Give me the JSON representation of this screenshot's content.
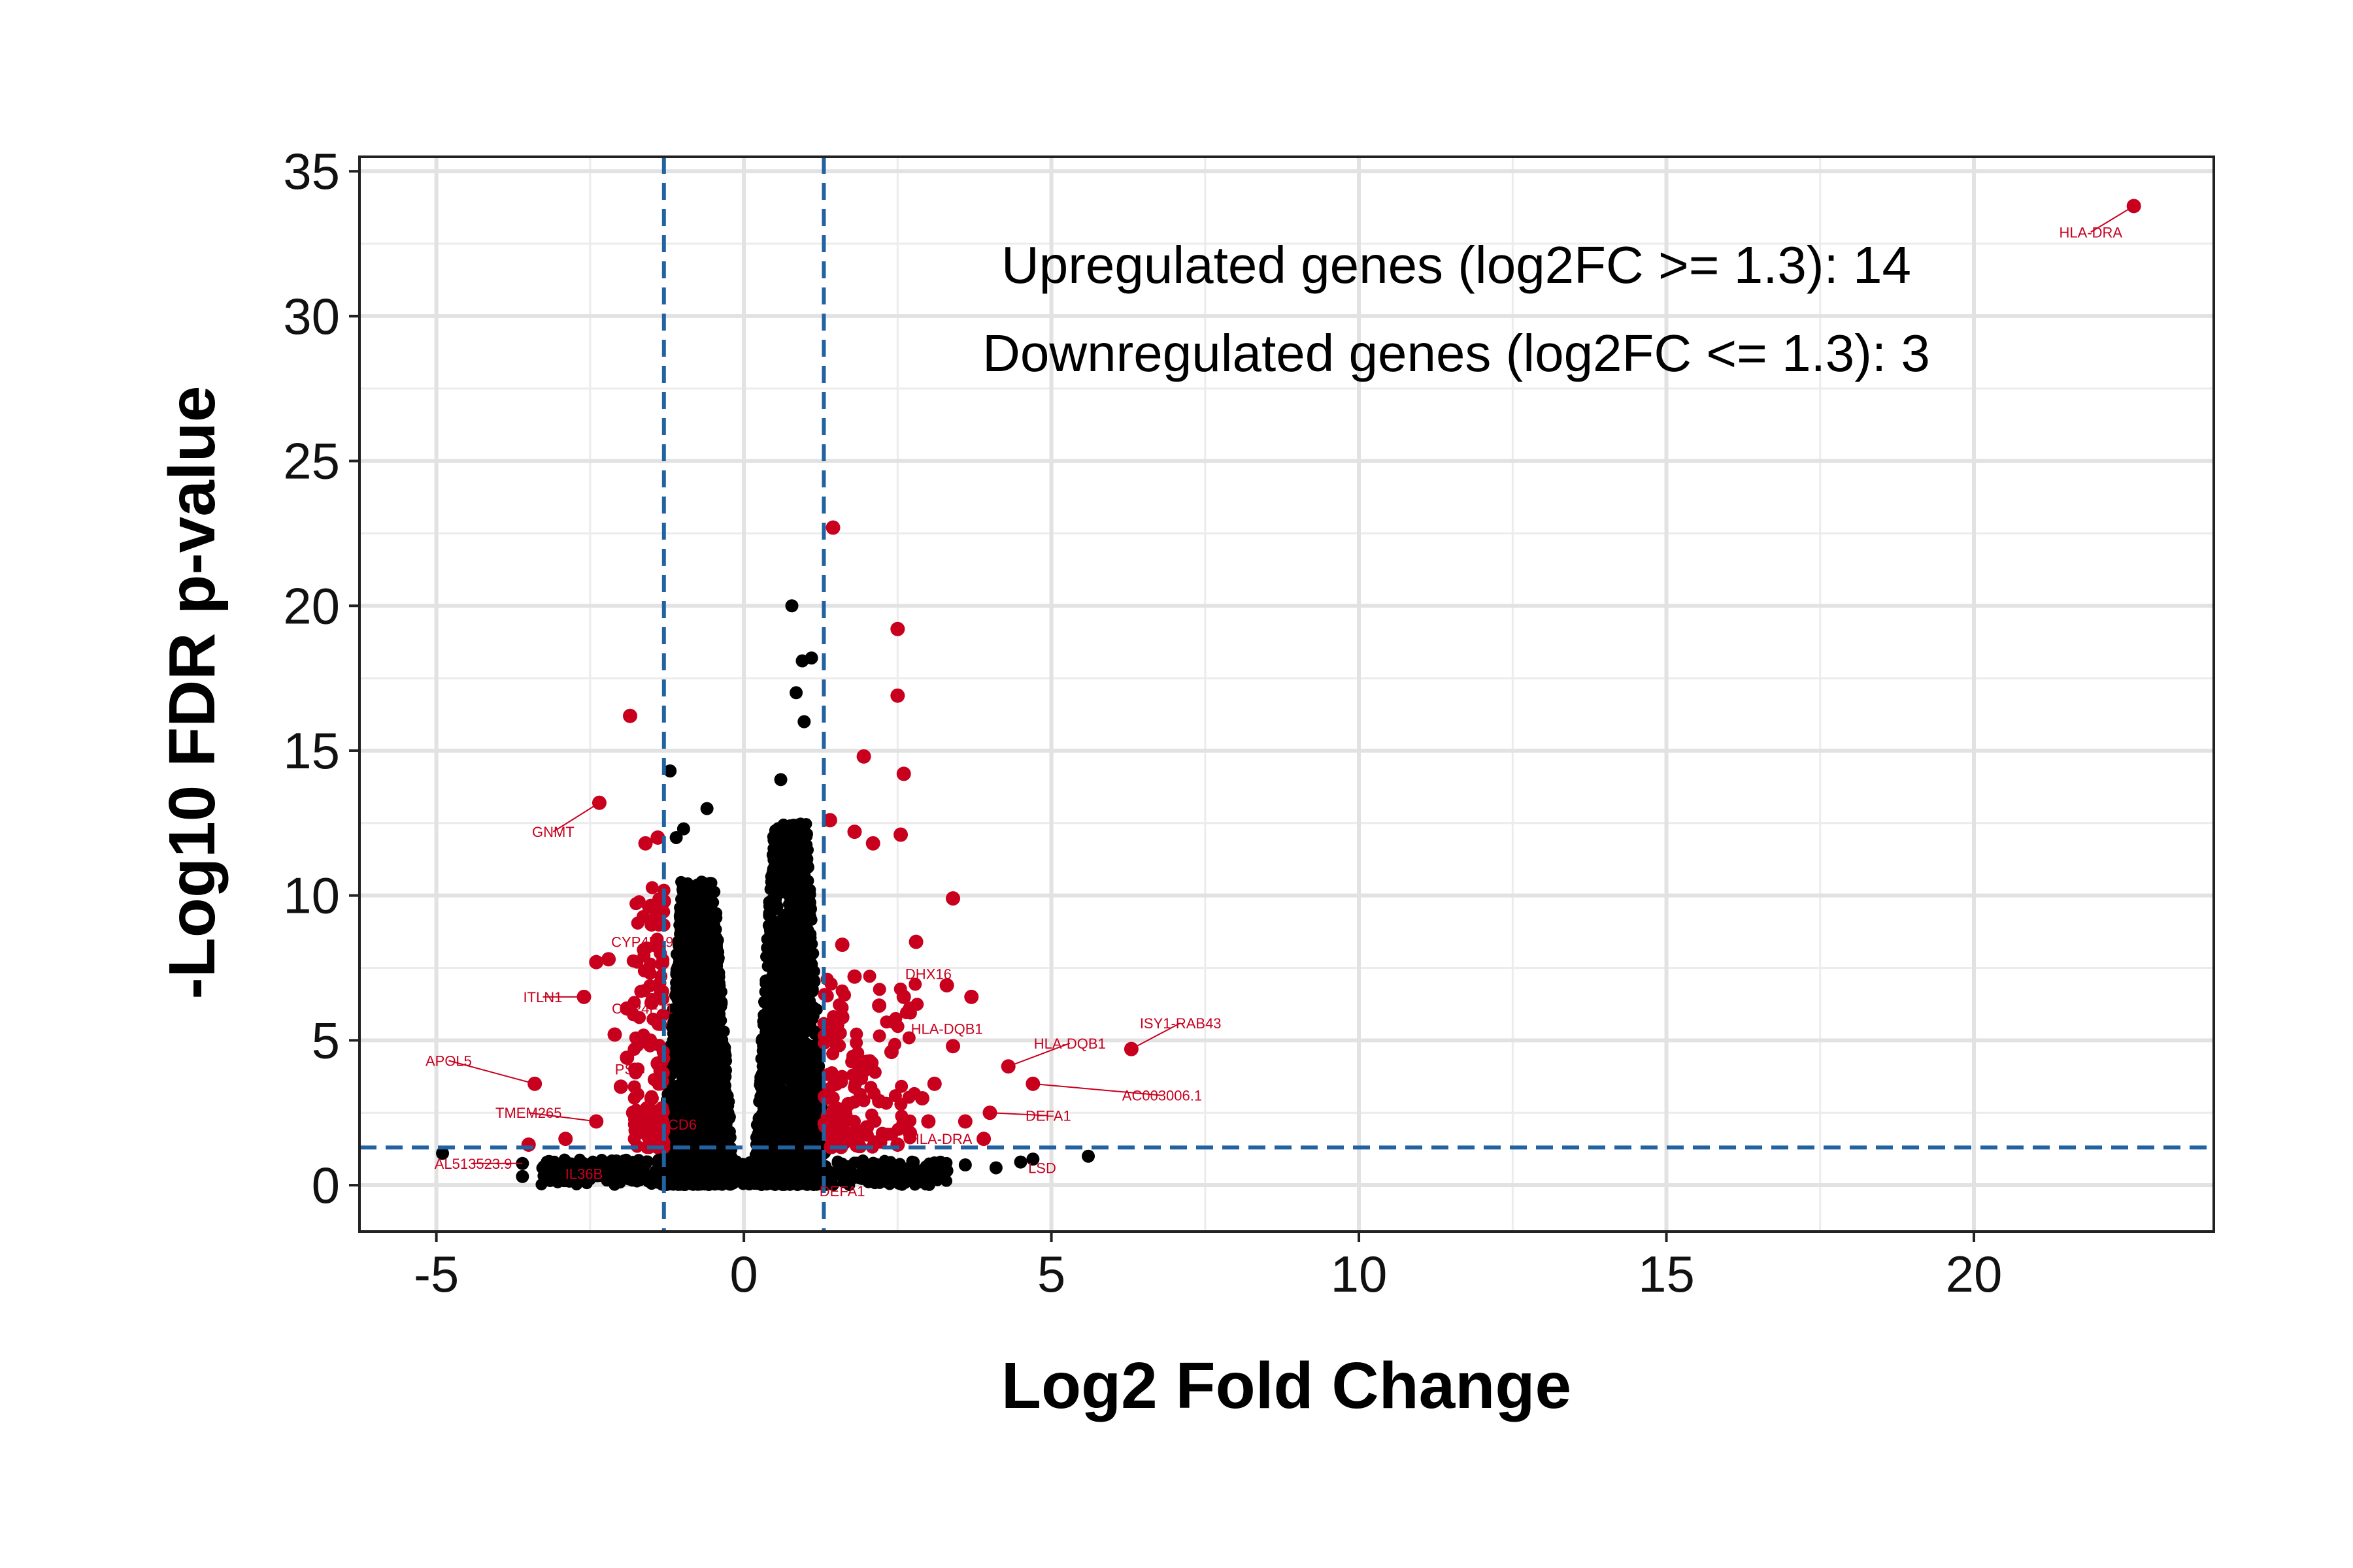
{
  "chart_data": {
    "type": "scatter",
    "xlabel": "Log2 Fold Change",
    "ylabel": "-Log10 FDR p-value",
    "xlim": [
      -6.25,
      23.9
    ],
    "ylim": [
      -1.6,
      35.5
    ],
    "x_ticks": [
      -5,
      0,
      5,
      10,
      15,
      20
    ],
    "y_ticks": [
      0,
      5,
      10,
      15,
      20,
      25,
      30,
      35
    ],
    "grid": true,
    "legend": "none",
    "thresholds": {
      "log2fc": [
        -1.3,
        1.3
      ],
      "neg_log10_fdr": 1.3
    },
    "annotations": [
      "Upregulated genes (log2FC >= 1.3): 14",
      "Downregulated genes (log2FC <= 1.3): 3"
    ],
    "colors": {
      "significant": "#c8001e",
      "not_significant": "#000000",
      "threshold_line": "#2262a0"
    },
    "series": [
      {
        "color": "#c8001e",
        "points": [
          [
            22.6,
            33.8
          ],
          [
            1.45,
            22.7
          ],
          [
            2.5,
            19.2
          ],
          [
            2.5,
            16.9
          ],
          [
            -1.85,
            16.2
          ],
          [
            2.6,
            14.2
          ],
          [
            1.95,
            14.8
          ],
          [
            -2.35,
            13.2
          ],
          [
            2.55,
            12.1
          ],
          [
            1.4,
            12.6
          ],
          [
            1.8,
            12.2
          ],
          [
            2.1,
            11.8
          ],
          [
            -1.4,
            12.0
          ],
          [
            -1.6,
            11.8
          ],
          [
            3.4,
            9.9
          ],
          [
            -1.5,
            9.0
          ],
          [
            -1.3,
            9.8
          ],
          [
            2.8,
            8.4
          ],
          [
            1.6,
            8.3
          ],
          [
            -2.4,
            7.7
          ],
          [
            -2.2,
            7.8
          ],
          [
            3.3,
            6.9
          ],
          [
            3.7,
            6.5
          ],
          [
            2.6,
            6.5
          ],
          [
            -2.6,
            6.5
          ],
          [
            -1.9,
            6.1
          ],
          [
            3.4,
            4.8
          ],
          [
            4.3,
            4.1
          ],
          [
            4.7,
            3.5
          ],
          [
            6.3,
            4.7
          ],
          [
            -2.1,
            5.2
          ],
          [
            -1.9,
            4.4
          ],
          [
            -3.4,
            3.5
          ],
          [
            -2.4,
            2.2
          ],
          [
            -3.5,
            1.4
          ],
          [
            4.0,
            2.5
          ],
          [
            -2.9,
            1.6
          ],
          [
            1.7,
            2.8
          ],
          [
            2.2,
            2.9
          ],
          [
            2.9,
            3.0
          ],
          [
            -1.5,
            3.0
          ],
          [
            -1.8,
            2.5
          ],
          [
            1.5,
            3.5
          ],
          [
            1.9,
            4.1
          ],
          [
            2.4,
            4.6
          ],
          [
            3.1,
            3.5
          ],
          [
            3.6,
            2.2
          ],
          [
            -1.6,
            1.8
          ],
          [
            -1.7,
            2.1
          ],
          [
            -1.4,
            4.2
          ],
          [
            2.0,
            2.0
          ],
          [
            2.7,
            1.8
          ],
          [
            1.6,
            5.8
          ],
          [
            2.2,
            6.2
          ],
          [
            -2.0,
            3.4
          ],
          [
            -1.5,
            6.3
          ],
          [
            1.8,
            7.2
          ],
          [
            3.0,
            2.2
          ],
          [
            3.9,
            1.6
          ],
          [
            2.5,
            1.4
          ]
        ]
      },
      {
        "color": "#000000",
        "points": [
          [
            -1.2,
            14.3
          ],
          [
            0.78,
            20.0
          ],
          [
            0.95,
            18.1
          ],
          [
            1.1,
            18.2
          ],
          [
            0.85,
            17.0
          ],
          [
            0.98,
            16.0
          ],
          [
            0.6,
            14.0
          ],
          [
            -0.6,
            13.0
          ],
          [
            -0.98,
            12.3
          ],
          [
            -1.1,
            12.0
          ],
          [
            -4.9,
            1.1
          ],
          [
            -3.6,
            0.75
          ],
          [
            -3.6,
            0.3
          ],
          [
            -2.9,
            0.8
          ],
          [
            5.6,
            1.0
          ],
          [
            4.7,
            0.9
          ],
          [
            4.5,
            0.8
          ],
          [
            4.1,
            0.6
          ],
          [
            3.6,
            0.7
          ],
          [
            3.3,
            0.5
          ],
          [
            -2.3,
            0.6
          ],
          [
            -2.7,
            0.3
          ]
        ]
      }
    ],
    "labels": [
      {
        "text": "HLA-DRA",
        "x": 22.6,
        "y": 33.8,
        "lx": 21.9,
        "ly": 32.9
      },
      {
        "text": "GNMT",
        "x": -2.35,
        "y": 13.2,
        "lx": -3.1,
        "ly": 12.2
      },
      {
        "text": "CYP4F19",
        "x": -1.6,
        "y": 8.5,
        "lx": -1.65,
        "ly": 8.4
      },
      {
        "text": "ITLN1",
        "x": -2.6,
        "y": 6.5,
        "lx": -3.27,
        "ly": 6.5
      },
      {
        "text": "CYP4F11",
        "x": -1.7,
        "y": 6.1,
        "lx": -1.65,
        "ly": 6.1
      },
      {
        "text": "APOL5",
        "x": -3.4,
        "y": 3.5,
        "lx": -4.8,
        "ly": 4.3
      },
      {
        "text": "PSG",
        "x": -1.9,
        "y": 4.0,
        "lx": -1.85,
        "ly": 4.0
      },
      {
        "text": "CD6",
        "x": -1.3,
        "y": 2.1,
        "lx": -1.0,
        "ly": 2.1
      },
      {
        "text": "TMEM265",
        "x": -2.4,
        "y": 2.2,
        "lx": -3.5,
        "ly": 2.5
      },
      {
        "text": "AL513523.9",
        "x": -3.6,
        "y": 0.75,
        "lx": -4.4,
        "ly": 0.75
      },
      {
        "text": "IL36B",
        "x": -2.7,
        "y": 0.4,
        "lx": -2.6,
        "ly": 0.4
      },
      {
        "text": "DHX16",
        "x": 2.8,
        "y": 8.4,
        "lx": 3.0,
        "ly": 7.3
      },
      {
        "text": "HLA-DQB1",
        "x": 3.4,
        "y": 4.8,
        "lx": 3.3,
        "ly": 5.4
      },
      {
        "text": "HLA-DQB1",
        "x": 4.3,
        "y": 4.1,
        "lx": 5.3,
        "ly": 4.9
      },
      {
        "text": "ISY1-RAB43",
        "x": 6.3,
        "y": 4.7,
        "lx": 7.1,
        "ly": 5.6
      },
      {
        "text": "AC003006.1",
        "x": 4.7,
        "y": 3.5,
        "lx": 6.8,
        "ly": 3.1
      },
      {
        "text": "DEFA1",
        "x": 4.0,
        "y": 2.5,
        "lx": 4.95,
        "ly": 2.4
      },
      {
        "text": "DEFA1",
        "x": 1.45,
        "y": 0.0,
        "lx": 1.6,
        "ly": -0.2
      },
      {
        "text": "HLA-DRA",
        "x": 3.0,
        "y": 1.7,
        "lx": 3.2,
        "ly": 1.6
      },
      {
        "text": "LSD",
        "x": 4.7,
        "y": 0.7,
        "lx": 4.85,
        "ly": 0.6
      }
    ]
  }
}
